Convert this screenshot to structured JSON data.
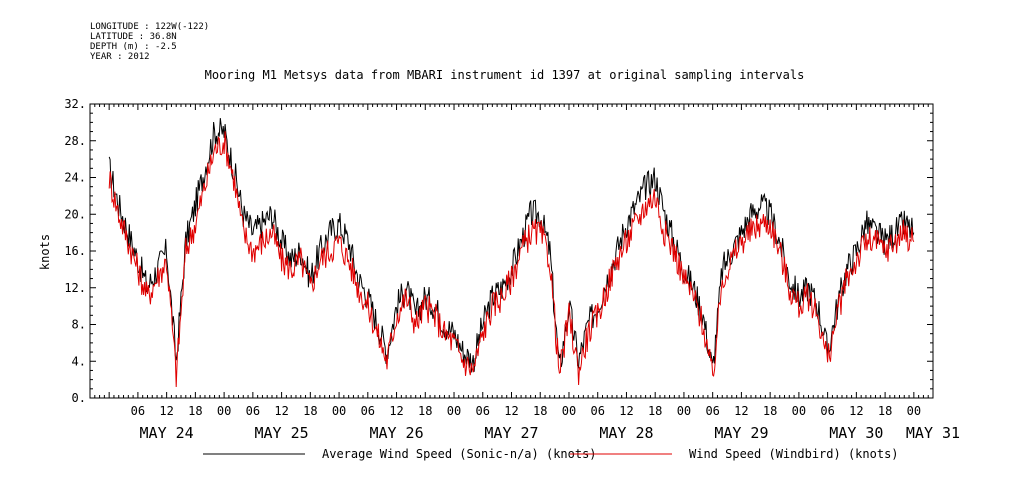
{
  "meta": {
    "longitude": "LONGITUDE : 122W(-122)",
    "latitude": "LATITUDE : 36.8N",
    "depth": "DEPTH (m) : -2.5",
    "year": "YEAR : 2012"
  },
  "chart_data": {
    "type": "line",
    "title": "Mooring M1 Metsys data from MBARI instrument id 1397 at original sampling intervals",
    "ylabel": "knots",
    "xlabel": "",
    "ylim": [
      0,
      32
    ],
    "yticks": [
      0,
      4,
      8,
      12,
      16,
      20,
      24,
      28,
      32
    ],
    "ytick_labels": [
      "0.",
      "4.",
      "8.",
      "12.",
      "16.",
      "20.",
      "24.",
      "28.",
      "32."
    ],
    "xlim_hours": [
      0,
      168
    ],
    "x_unit": "hours since 00 May 24 2012 (minus offset)",
    "hour_ticks": [
      {
        "h": 6,
        "label": "06"
      },
      {
        "h": 12,
        "label": "12"
      },
      {
        "h": 18,
        "label": "18"
      },
      {
        "h": 24,
        "label": "00"
      },
      {
        "h": 30,
        "label": "06"
      },
      {
        "h": 36,
        "label": "12"
      },
      {
        "h": 42,
        "label": "18"
      },
      {
        "h": 48,
        "label": "00"
      },
      {
        "h": 54,
        "label": "06"
      },
      {
        "h": 60,
        "label": "12"
      },
      {
        "h": 66,
        "label": "18"
      },
      {
        "h": 72,
        "label": "00"
      },
      {
        "h": 78,
        "label": "06"
      },
      {
        "h": 84,
        "label": "12"
      },
      {
        "h": 90,
        "label": "18"
      },
      {
        "h": 96,
        "label": "00"
      },
      {
        "h": 102,
        "label": "06"
      },
      {
        "h": 108,
        "label": "12"
      },
      {
        "h": 114,
        "label": "18"
      },
      {
        "h": 120,
        "label": "00"
      },
      {
        "h": 126,
        "label": "06"
      },
      {
        "h": 132,
        "label": "12"
      },
      {
        "h": 138,
        "label": "18"
      },
      {
        "h": 144,
        "label": "00"
      },
      {
        "h": 150,
        "label": "06"
      },
      {
        "h": 156,
        "label": "12"
      },
      {
        "h": 162,
        "label": "18"
      },
      {
        "h": 168,
        "label": "00"
      }
    ],
    "day_labels": [
      {
        "h": 12,
        "label": "MAY 24"
      },
      {
        "h": 36,
        "label": "MAY 25"
      },
      {
        "h": 60,
        "label": "MAY 26"
      },
      {
        "h": 84,
        "label": "MAY 27"
      },
      {
        "h": 108,
        "label": "MAY 28"
      },
      {
        "h": 132,
        "label": "MAY 29"
      },
      {
        "h": 156,
        "label": "MAY 30"
      },
      {
        "h": 172,
        "label": "MAY 31"
      }
    ],
    "series": [
      {
        "name": "Average Wind Speed (Sonic-n/a) (knots)",
        "color": "#000000",
        "x": [
          0,
          2,
          4,
          6,
          8,
          10,
          12,
          14,
          16,
          18,
          20,
          22,
          24,
          26,
          28,
          30,
          32,
          34,
          36,
          38,
          40,
          42,
          44,
          46,
          48,
          50,
          52,
          54,
          56,
          58,
          60,
          62,
          64,
          66,
          68,
          70,
          72,
          74,
          76,
          78,
          80,
          82,
          84,
          86,
          88,
          90,
          92,
          94,
          96,
          98,
          100,
          102,
          104,
          106,
          108,
          110,
          112,
          114,
          116,
          118,
          120,
          122,
          124,
          126,
          128,
          130,
          132,
          134,
          136,
          138,
          140,
          142,
          144,
          146,
          148,
          150,
          152,
          154,
          156,
          158,
          160,
          162,
          164,
          166,
          168
        ],
        "y": [
          25,
          21,
          18,
          15,
          12,
          14,
          16,
          4,
          17,
          21,
          25,
          29,
          29,
          25,
          20,
          18,
          19,
          20,
          17,
          15,
          16,
          13,
          16,
          18,
          19,
          17,
          13,
          11,
          8,
          5,
          10,
          12,
          9,
          11,
          10,
          8,
          7,
          5,
          4,
          8,
          11,
          12,
          14,
          17,
          20,
          20,
          16,
          3,
          10,
          4,
          8,
          10,
          13,
          16,
          19,
          21,
          23,
          24,
          20,
          17,
          14,
          12,
          9,
          3,
          14,
          16,
          18,
          20,
          21,
          20,
          17,
          13,
          11,
          12,
          10,
          5,
          10,
          14,
          16,
          19,
          18,
          17,
          18,
          19,
          18
        ]
      },
      {
        "name": "Wind Speed (Windbird) (knots)",
        "color": "#e00000",
        "x": [
          0,
          2,
          4,
          6,
          8,
          10,
          12,
          14,
          16,
          18,
          20,
          22,
          24,
          26,
          28,
          30,
          32,
          34,
          36,
          38,
          40,
          42,
          44,
          46,
          48,
          50,
          52,
          54,
          56,
          58,
          60,
          62,
          64,
          66,
          68,
          70,
          72,
          74,
          76,
          78,
          80,
          82,
          84,
          86,
          88,
          90,
          92,
          94,
          96,
          98,
          100,
          102,
          104,
          106,
          108,
          110,
          112,
          114,
          116,
          118,
          120,
          122,
          124,
          126,
          128,
          130,
          132,
          134,
          136,
          138,
          140,
          142,
          144,
          146,
          148,
          150,
          152,
          154,
          156,
          158,
          160,
          162,
          164,
          166,
          168
        ],
        "y": [
          24,
          20,
          17,
          14,
          11,
          13,
          15,
          2.5,
          16,
          19,
          23,
          27,
          28,
          24,
          18,
          16,
          17,
          18,
          15,
          14,
          15,
          12,
          15,
          16,
          17,
          15,
          12,
          10,
          7,
          4,
          9,
          11,
          8,
          10,
          9,
          7,
          6,
          4,
          3,
          7,
          10,
          11,
          13,
          16,
          18,
          18,
          15,
          2.5,
          9,
          3,
          7,
          9,
          12,
          15,
          17,
          19,
          21,
          22,
          18,
          16,
          13,
          11,
          8,
          2,
          13,
          15,
          17,
          18,
          19,
          19,
          16,
          12,
          10,
          11,
          9,
          4,
          9,
          13,
          15,
          17,
          17,
          16,
          17,
          18,
          17
        ]
      }
    ]
  }
}
